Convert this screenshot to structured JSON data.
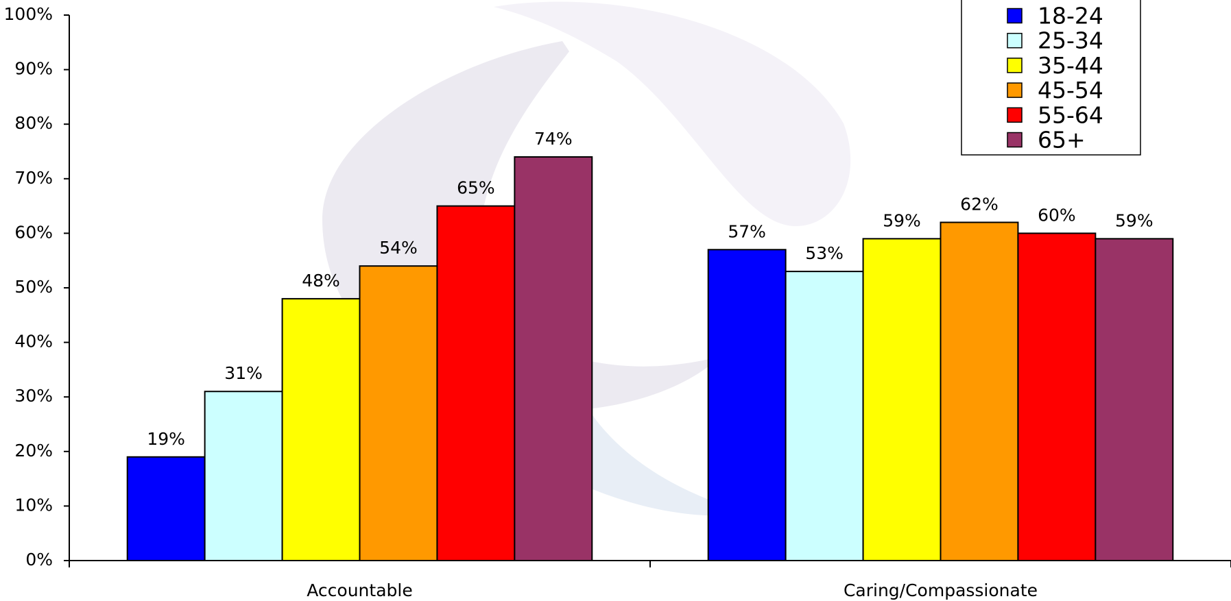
{
  "chart_data": {
    "type": "bar",
    "categories": [
      "Accountable",
      "Caring/Compassionate"
    ],
    "series": [
      {
        "name": "18-24",
        "color": "#0000ff",
        "values": [
          19,
          57
        ],
        "value_labels": [
          "19%",
          "57%"
        ]
      },
      {
        "name": "25-34",
        "color": "#ccffff",
        "values": [
          31,
          53
        ],
        "value_labels": [
          "31%",
          "53%"
        ]
      },
      {
        "name": "35-44",
        "color": "#ffff00",
        "values": [
          48,
          59
        ],
        "value_labels": [
          "48%",
          "59%"
        ]
      },
      {
        "name": "45-54",
        "color": "#ff9900",
        "values": [
          54,
          62
        ],
        "value_labels": [
          "54%",
          "62%"
        ]
      },
      {
        "name": "55-64",
        "color": "#ff0000",
        "values": [
          65,
          60
        ],
        "value_labels": [
          "65%",
          "60%"
        ]
      },
      {
        "name": "65+",
        "color": "#993366",
        "values": [
          74,
          59
        ],
        "value_labels": [
          "74%",
          "59%"
        ]
      }
    ],
    "ylim": [
      0,
      100
    ],
    "yticks": [
      {
        "value": 0,
        "label": "0%"
      },
      {
        "value": 10,
        "label": "10%"
      },
      {
        "value": 20,
        "label": "20%"
      },
      {
        "value": 30,
        "label": "30%"
      },
      {
        "value": 40,
        "label": "40%"
      },
      {
        "value": 50,
        "label": "50%"
      },
      {
        "value": 60,
        "label": "60%"
      },
      {
        "value": 70,
        "label": "70%"
      },
      {
        "value": 80,
        "label": "80%"
      },
      {
        "value": 90,
        "label": "90%"
      },
      {
        "value": 100,
        "label": "100%"
      }
    ],
    "grid": false,
    "legend": "top-right"
  }
}
